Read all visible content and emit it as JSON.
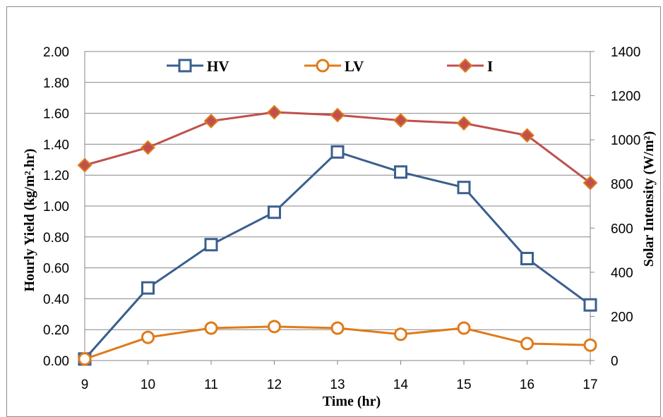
{
  "chart_data": {
    "type": "line",
    "x": [
      9,
      10,
      11,
      12,
      13,
      14,
      15,
      16,
      17
    ],
    "xlabel": "Time (hr)",
    "ylabel_left": "Hourly Yield (kg/m².hr)",
    "ylabel_right": "Solar Intensity (W/m²)",
    "ylim_left": [
      0,
      2.0
    ],
    "ylim_right": [
      0,
      1400
    ],
    "yticks_left": [
      "0.00",
      "0.20",
      "0.40",
      "0.60",
      "0.80",
      "1.00",
      "1.20",
      "1.40",
      "1.60",
      "1.80",
      "2.00"
    ],
    "yticks_right": [
      "0",
      "200",
      "400",
      "600",
      "800",
      "1000",
      "1200",
      "1400"
    ],
    "xticks": [
      "9",
      "10",
      "11",
      "12",
      "13",
      "14",
      "15",
      "16",
      "17"
    ],
    "grid": true,
    "legend_placement": "top",
    "series": [
      {
        "name": "HV",
        "axis": "left",
        "color": "#3a5f8f",
        "marker": "square",
        "values": [
          0.01,
          0.47,
          0.75,
          0.96,
          1.35,
          1.22,
          1.12,
          0.66,
          0.36
        ]
      },
      {
        "name": "LV",
        "axis": "left",
        "color": "#e07a1a",
        "marker": "circle",
        "values": [
          0.01,
          0.15,
          0.21,
          0.22,
          0.21,
          0.17,
          0.21,
          0.11,
          0.1
        ]
      },
      {
        "name": "I",
        "axis": "right",
        "color": "#c0504d",
        "marker": "diamond",
        "values": [
          885,
          965,
          1085,
          1125,
          1112,
          1088,
          1075,
          1020,
          805
        ]
      }
    ]
  }
}
